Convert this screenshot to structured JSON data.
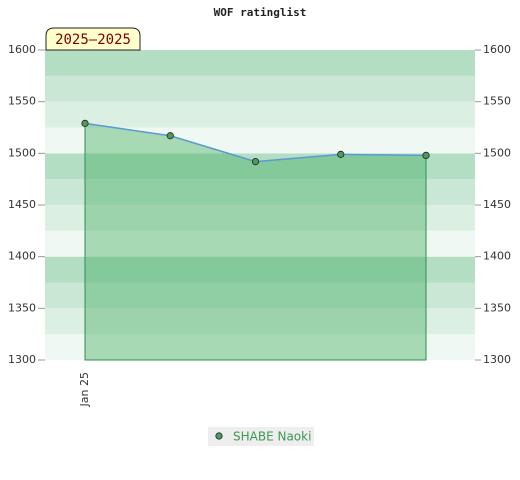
{
  "chart_data": {
    "type": "line",
    "title": "WOF ratinglist",
    "badge": "2025–2025",
    "categories": [
      "Jan 25",
      null,
      null,
      null,
      null
    ],
    "series": [
      {
        "name": "SHABE Naoki",
        "color": "#5b9bd5",
        "fill": "#3caa5a",
        "marker_color": "#4c9a5e",
        "values": [
          1529,
          1517,
          1492,
          1499,
          1498
        ]
      }
    ],
    "ylim": [
      1300,
      1600
    ],
    "yticks": [
      1300,
      1350,
      1400,
      1450,
      1500,
      1550,
      1600
    ],
    "band_colors": [
      "#eff8f2",
      "#dcefe3",
      "#c9e7d4",
      "#b3dec4"
    ],
    "right_axis": true
  }
}
